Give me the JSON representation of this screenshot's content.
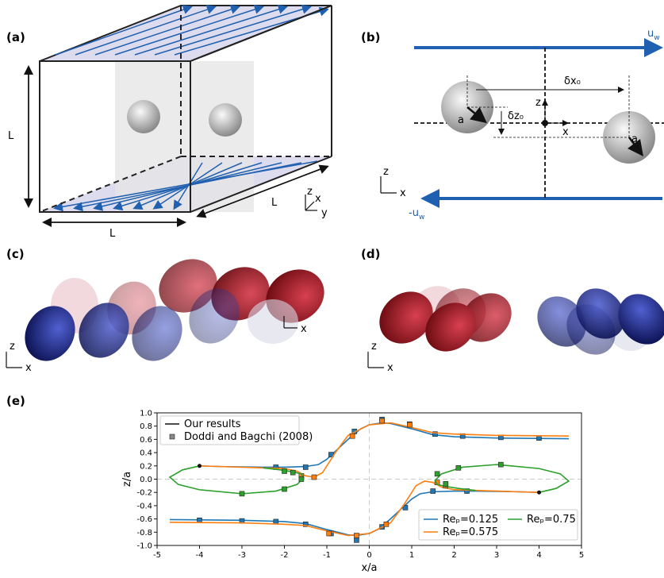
{
  "panels": {
    "a": {
      "label": "(a)",
      "dims": [
        "L",
        "L",
        "L"
      ],
      "axes": [
        "z",
        "x",
        "y"
      ]
    },
    "b": {
      "label": "(b)",
      "top_wall": {
        "u": "u",
        "sub": "w"
      },
      "bottom_wall": {
        "u": "-u",
        "sub": "w"
      },
      "dx": "δx₀",
      "dz": "δz₀",
      "center_axes": [
        "z",
        "x"
      ],
      "radii": [
        "a",
        "a"
      ],
      "axes": [
        "z",
        "x"
      ]
    },
    "c": {
      "label": "(c)",
      "axes": [
        "z",
        "x"
      ],
      "inner_axis": "x"
    },
    "d": {
      "label": "(d)",
      "axes": [
        "z",
        "x"
      ]
    },
    "e": {
      "label": "(e)"
    }
  },
  "chart_data": {
    "type": "line",
    "xlabel": "x/a",
    "ylabel": "z/a",
    "xlim": [
      -5,
      5
    ],
    "ylim": [
      -1,
      1
    ],
    "xticks": [
      -5,
      -4,
      -3,
      -2,
      -1,
      0,
      1,
      2,
      3,
      4,
      5
    ],
    "yticks": [
      {
        "value": 1,
        "label": "1.0"
      },
      0.8,
      0.6,
      0.4,
      0.2,
      {
        "value": 0,
        "label": "0.0"
      },
      -0.2,
      -0.4,
      -0.6,
      -0.8,
      {
        "value": -1,
        "label": "-1.0"
      }
    ],
    "style_legend": [
      "Our results",
      "Doddi and Bagchi (2008)"
    ],
    "start_points": {
      "x": [
        -4,
        4
      ],
      "values": [
        0.2,
        -0.2
      ]
    },
    "series": [
      {
        "name": "Reₚ=0.125",
        "color": "#1f77b4",
        "x": [
          -4,
          -3.5,
          -2.5,
          -2,
          -1.5,
          -1.2,
          -1,
          -0.7,
          -0.5,
          -0.2,
          0,
          0.3,
          0.5,
          1,
          1.5,
          2,
          3,
          4.7,
          null,
          4,
          3.5,
          2.5,
          2,
          1.5,
          1.2,
          1,
          0.7,
          0.5,
          0.2,
          0,
          -0.3,
          -0.5,
          -1,
          -1.5,
          -2,
          -3,
          -4.7
        ],
        "values": [
          0.2,
          0.19,
          0.18,
          0.18,
          0.19,
          0.22,
          0.3,
          0.48,
          0.6,
          0.76,
          0.82,
          0.85,
          0.84,
          0.76,
          0.67,
          0.64,
          0.62,
          0.61,
          null,
          -0.2,
          -0.19,
          -0.18,
          -0.18,
          -0.19,
          -0.22,
          -0.3,
          -0.48,
          -0.6,
          -0.76,
          -0.82,
          -0.85,
          -0.84,
          -0.76,
          -0.67,
          -0.64,
          -0.62,
          -0.61
        ],
        "marker_x": [
          -2.2,
          -1.5,
          -0.9,
          -0.35,
          0.3,
          0.95,
          1.55,
          2.2,
          3.1,
          4,
          -4,
          -3,
          -2.2,
          -1.5,
          -0.9,
          -0.3,
          0.3,
          0.85,
          1.5,
          2.3
        ],
        "marker_values": [
          0.18,
          0.18,
          0.37,
          0.72,
          0.9,
          0.83,
          0.68,
          0.65,
          0.63,
          0.62,
          -0.62,
          -0.63,
          -0.64,
          -0.68,
          -0.82,
          -0.92,
          -0.72,
          -0.43,
          -0.18,
          -0.18
        ]
      },
      {
        "name": "Reₚ=0.575",
        "color": "#ff7f0e",
        "x": [
          -4,
          -3.5,
          -2.5,
          -2,
          -1.7,
          -1.5,
          -1.3,
          -1.1,
          -0.8,
          -0.5,
          0,
          0.5,
          1,
          1.5,
          2,
          3,
          4.7,
          null,
          4,
          3.5,
          2.5,
          2,
          1.7,
          1.5,
          1.3,
          1.1,
          0.8,
          0.5,
          0,
          -0.5,
          -1,
          -1.5,
          -2,
          -3,
          -4.7
        ],
        "values": [
          0.2,
          0.19,
          0.17,
          0.16,
          0.12,
          0.05,
          0.03,
          0.1,
          0.4,
          0.66,
          0.82,
          0.85,
          0.78,
          0.7,
          0.68,
          0.66,
          0.65,
          null,
          -0.2,
          -0.19,
          -0.17,
          -0.16,
          -0.12,
          -0.05,
          -0.03,
          -0.1,
          -0.4,
          -0.66,
          -0.82,
          -0.85,
          -0.78,
          -0.7,
          -0.68,
          -0.66,
          -0.65
        ],
        "marker_x": [
          -1.6,
          -1.3,
          -0.4,
          0.3,
          0.95,
          -0.95,
          -0.3,
          0.4,
          1.6,
          1.8
        ],
        "marker_values": [
          0.05,
          0.03,
          0.65,
          0.88,
          0.82,
          -0.82,
          -0.85,
          -0.68,
          -0.05,
          -0.1
        ]
      },
      {
        "name": "Reₚ=0.75",
        "color": "#2ca02c",
        "x": [
          -4,
          -4.4,
          -4.7,
          -4.5,
          -4,
          -3,
          -2.2,
          -1.7,
          -1.55,
          -1.6,
          -1.8,
          -2.1,
          -2.5,
          null,
          4,
          4.4,
          4.7,
          4.5,
          4,
          3,
          2.2,
          1.7,
          1.55,
          1.6,
          1.8,
          2.1,
          2.5
        ],
        "values": [
          0.2,
          0.14,
          0.03,
          -0.08,
          -0.16,
          -0.22,
          -0.18,
          -0.08,
          0.02,
          0.08,
          0.11,
          0.14,
          0.17,
          null,
          -0.2,
          -0.14,
          -0.03,
          0.08,
          0.16,
          0.22,
          0.18,
          0.08,
          -0.02,
          -0.08,
          -0.11,
          -0.14,
          -0.17
        ],
        "marker_x": [
          -3,
          -2,
          -2,
          -1.8,
          -1.6,
          3.1,
          2.1,
          1.6,
          1.8
        ],
        "marker_values": [
          -0.22,
          -0.15,
          0.12,
          0.1,
          0,
          0.22,
          0.17,
          0.08,
          -0.07
        ]
      }
    ]
  }
}
